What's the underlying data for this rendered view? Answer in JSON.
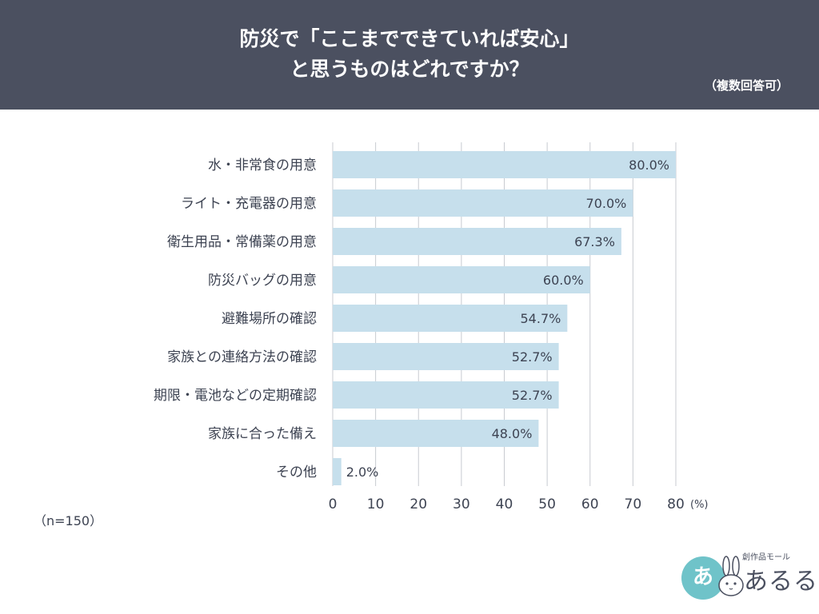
{
  "header": {
    "title_line1": "防災で「ここまでできていれば安心」",
    "title_line2": "と思うものはどれですか？",
    "subtitle": "（複数回答可）"
  },
  "footer": {
    "sample_note": "（n=150）"
  },
  "logo": {
    "circle_text": "あ",
    "small_text": "創作品モール",
    "main_text": "あるる"
  },
  "colors": {
    "header_bg": "#4b5060",
    "bar": "#c6dfec",
    "grid": "#c8cbd1",
    "text": "#3d4352",
    "logo_accent": "#6fc3c9"
  },
  "chart_data": {
    "type": "bar",
    "orientation": "horizontal",
    "categories": [
      "水・非常食の用意",
      "ライト・充電器の用意",
      "衛生用品・常備薬の用意",
      "防災バッグの用意",
      "避難場所の確認",
      "家族との連絡方法の確認",
      "期限・電池などの定期確認",
      "家族に合った備え",
      "その他"
    ],
    "values": [
      80.0,
      70.0,
      67.3,
      60.0,
      54.7,
      52.7,
      52.7,
      48.0,
      2.0
    ],
    "value_labels": [
      "80.0%",
      "70.0%",
      "67.3%",
      "60.0%",
      "54.7%",
      "52.7%",
      "52.7%",
      "48.0%",
      "2.0%"
    ],
    "xlim": [
      0,
      80
    ],
    "xticks": [
      "0",
      "10",
      "20",
      "30",
      "40",
      "50",
      "60",
      "70",
      "80"
    ],
    "x_unit": "(%)",
    "grid": true
  }
}
